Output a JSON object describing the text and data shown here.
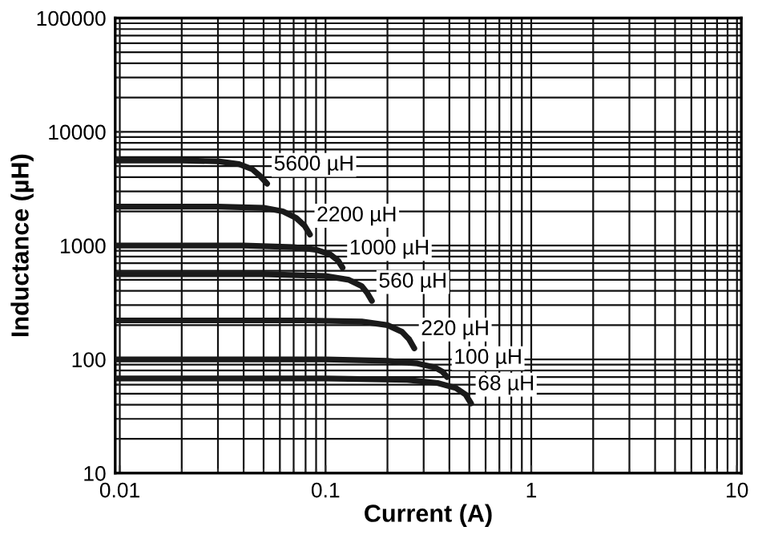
{
  "chart_data": {
    "type": "line",
    "xlabel": "Current (A)",
    "ylabel": "Inductance (µH)",
    "log": "xy",
    "grid": true,
    "legend": false,
    "marker": "none",
    "line_style": "solid",
    "xlim": [
      0.0095,
      10.5
    ],
    "xticks": [
      0.01,
      0.1,
      1,
      10
    ],
    "ylim": [
      10,
      100000
    ],
    "yticks": [
      10,
      100,
      1000,
      10000,
      100000
    ],
    "series": [
      {
        "color": "#1a1a1a",
        "x": [
          0.0095,
          0.02,
          0.03,
          0.038,
          0.044,
          0.048,
          0.052
        ],
        "values": [
          5600,
          5600,
          5500,
          5200,
          4700,
          4100,
          3500
        ]
      },
      {
        "color": "#1a1a1a",
        "x": [
          0.0095,
          0.03,
          0.05,
          0.062,
          0.072,
          0.079,
          0.084
        ],
        "values": [
          2200,
          2200,
          2150,
          2000,
          1750,
          1500,
          1250
        ]
      },
      {
        "color": "#1a1a1a",
        "x": [
          0.0095,
          0.04,
          0.07,
          0.09,
          0.105,
          0.115,
          0.121
        ],
        "values": [
          1000,
          1000,
          970,
          920,
          840,
          740,
          640
        ]
      },
      {
        "color": "#1a1a1a",
        "x": [
          0.0095,
          0.05,
          0.1,
          0.13,
          0.15,
          0.16,
          0.168
        ],
        "values": [
          560,
          560,
          540,
          500,
          440,
          380,
          327
        ]
      },
      {
        "color": "#1a1a1a",
        "x": [
          0.0095,
          0.08,
          0.15,
          0.2,
          0.235,
          0.255,
          0.27
        ],
        "values": [
          220,
          220,
          215,
          200,
          175,
          150,
          125
        ]
      },
      {
        "color": "#1a1a1a",
        "x": [
          0.0095,
          0.1,
          0.2,
          0.28,
          0.34,
          0.37,
          0.39
        ],
        "values": [
          100,
          100,
          97,
          92,
          85,
          78,
          70
        ]
      },
      {
        "color": "#1a1a1a",
        "x": [
          0.0095,
          0.1,
          0.25,
          0.35,
          0.43,
          0.48,
          0.51
        ],
        "values": [
          68,
          68,
          66,
          62,
          56,
          49,
          41
        ]
      }
    ],
    "annotations": [
      {
        "text": "5600 µH",
        "x": 0.052,
        "y": 3500
      },
      {
        "text": "2200 µH",
        "x": 0.084,
        "y": 1250
      },
      {
        "text": "1000 µH",
        "x": 0.121,
        "y": 640
      },
      {
        "text": "560 µH",
        "x": 0.168,
        "y": 327
      },
      {
        "text": "220 µH",
        "x": 0.27,
        "y": 125
      },
      {
        "text": "100 µH",
        "x": 0.39,
        "y": 70
      },
      {
        "text": "68 µH",
        "x": 0.51,
        "y": 41
      }
    ]
  }
}
